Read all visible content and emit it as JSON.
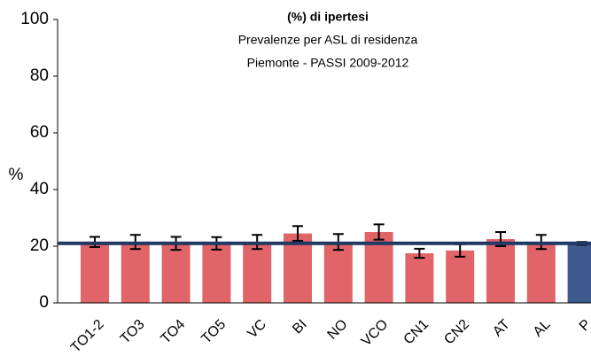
{
  "chart_data": {
    "type": "bar",
    "title_lines": [
      "(%) di ipertesi",
      "Prevalenze per ASL di residenza",
      "Piemonte - PASSI 2009-2012"
    ],
    "y_label": "%",
    "categories": [
      "TO1-2",
      "TO3",
      "TO4",
      "TO5",
      "VC",
      "BI",
      "NO",
      "VCO",
      "CN1",
      "CN2",
      "AT",
      "AL",
      "P"
    ],
    "values": [
      21.5,
      21.5,
      21,
      21,
      21.5,
      24.5,
      21.5,
      25,
      17.5,
      18.5,
      22.5,
      21.5,
      21
    ],
    "errors": [
      1.8,
      2.5,
      2.3,
      2.2,
      2.5,
      2.6,
      2.8,
      2.7,
      1.6,
      2.2,
      2.5,
      2.5,
      0.5
    ],
    "colors": [
      "#e06468",
      "#e06468",
      "#e06468",
      "#e06468",
      "#e06468",
      "#e06468",
      "#e06468",
      "#e06468",
      "#e06468",
      "#e06468",
      "#e06468",
      "#e06468",
      "#3e5a8e"
    ],
    "reference_line": 21,
    "reference_color": "#1f3864",
    "ylim": [
      0,
      100
    ],
    "yticks": [
      0,
      20,
      40,
      60,
      80,
      100
    ]
  }
}
